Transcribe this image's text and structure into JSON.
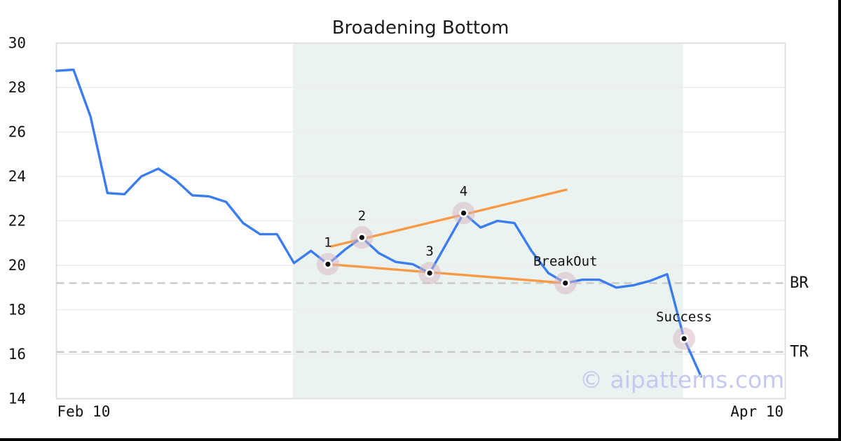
{
  "title": "Broadening Bottom",
  "watermark": "© aipatterns.com",
  "colors": {
    "price_line": "#3b7df0",
    "trendline": "#f89a45",
    "marker_halo": "rgba(214,181,193,0.5)",
    "marker_ring": "#ffffff",
    "marker_dot": "#0d0d0d",
    "shade": "#eaf3ef",
    "level_line": "#c9c9c9",
    "gridline": "#ececec",
    "frame": "#dddddd",
    "tick_text": "#111111",
    "annotation_text": "#111111"
  },
  "chart_data": {
    "type": "line",
    "title": "Broadening Bottom",
    "xlabel": "",
    "ylabel": "",
    "ylim": [
      14,
      30
    ],
    "y_ticks": [
      14,
      16,
      18,
      20,
      22,
      24,
      26,
      28,
      30
    ],
    "x_ticks": [
      {
        "label": "Feb 10",
        "index": 1.6
      },
      {
        "label": "Apr 10",
        "index": 41.3
      }
    ],
    "grid": "horizontal",
    "legend": "none",
    "series": [
      {
        "name": "price",
        "values": [
          28.75,
          28.8,
          26.7,
          23.25,
          23.2,
          24.0,
          24.35,
          23.85,
          23.15,
          23.1,
          22.85,
          21.9,
          21.4,
          21.4,
          20.1,
          20.65,
          20.05,
          20.7,
          21.25,
          20.55,
          20.15,
          20.05,
          19.65,
          21.0,
          22.35,
          21.7,
          22.0,
          21.9,
          20.65,
          19.65,
          19.2,
          19.35,
          19.35,
          19.0,
          19.1,
          19.3,
          19.6,
          16.7,
          15.0
        ]
      }
    ],
    "pattern_points": [
      {
        "index": 16,
        "label": "1",
        "value": 20.05
      },
      {
        "index": 18,
        "label": "2",
        "value": 21.25
      },
      {
        "index": 22,
        "label": "3",
        "value": 19.65
      },
      {
        "index": 24,
        "label": "4",
        "value": 22.35
      },
      {
        "index": 30,
        "label": "BreakOut",
        "value": 19.2
      },
      {
        "index": 37,
        "label": "Success",
        "value": 16.7
      }
    ],
    "trendlines": [
      {
        "name": "upper-broadening-line",
        "x1_index": 16.2,
        "y1": 20.85,
        "x2_index": 30.05,
        "y2": 23.4
      },
      {
        "name": "lower-broadening-line",
        "x1_index": 16.0,
        "y1": 20.05,
        "x2_index": 30.0,
        "y2": 19.2
      }
    ],
    "levels": [
      {
        "label": "BR",
        "value": 19.2
      },
      {
        "label": "TR",
        "value": 16.1
      }
    ],
    "shaded_region": {
      "start_index": 14,
      "end_index": 37
    }
  }
}
